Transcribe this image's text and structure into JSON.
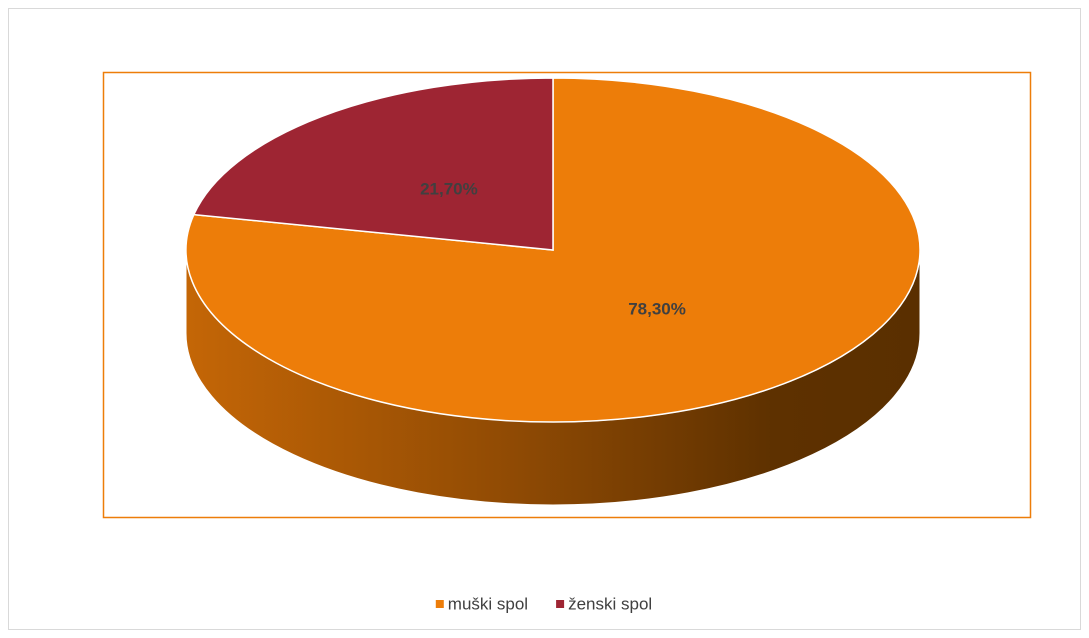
{
  "chart_data": {
    "type": "pie",
    "categories": [
      "muški spol",
      "ženski spol"
    ],
    "values": [
      78.3,
      21.7
    ],
    "value_labels": [
      "78,30%",
      "21,70%"
    ],
    "colors": [
      "#ED7D09",
      "#9E2533"
    ],
    "legend": "bottom"
  }
}
